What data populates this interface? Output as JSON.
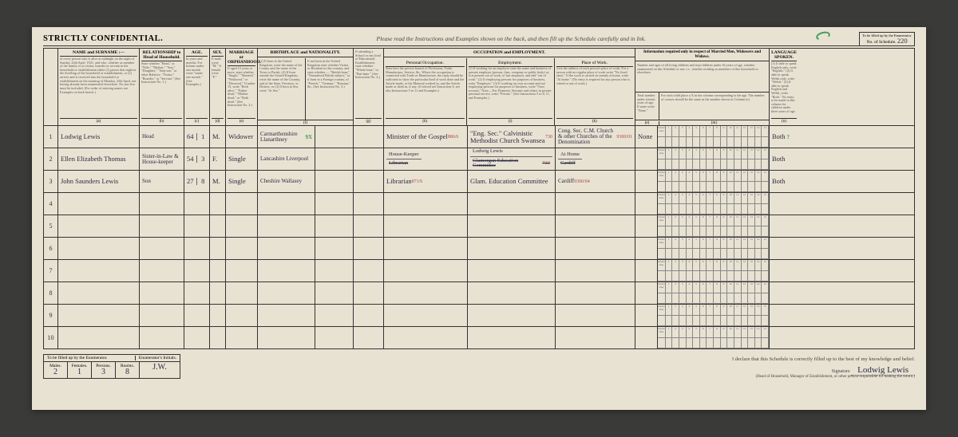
{
  "header": {
    "confidential": "STRICTLY CONFIDENTIAL.",
    "instructions": "Please read the Instructions and Examples shown on the back, and then fill up the Schedule carefully and in Ink.",
    "schedule_label": "To be filled up by the Enumerator.",
    "schedule_no_label": "No. of Schedule.",
    "schedule_no": "220"
  },
  "columns": {
    "name": {
      "title": "NAME and SURNAME :—",
      "text": "of every person who is alive at midnight on the night of Sunday, 24th April, 1921, and who, whether as member of the family or as visitor, boarder or servant in the household or establishment either (1) passes that night in the dwelling of the household or establishment, or (2) arrives and is received into the household or establishment on the morning of Monday, 25th April, not having already been enumerated elsewhere. No one else must be included. (For order of entering names see Examples on back hereof.)",
      "footer": "(a)"
    },
    "relationship": {
      "title": "RELATIONSHIP to Head of Household.",
      "text": "State whether \"Head,\" or \"Wife,\" \"Mother,\" \"Son,\" \"Daughter,\" \"Step-son,\" or other Relative, \"Visitor,\" \"Boarder,\" or \"Servant.\" (See Instruction No. 1.)",
      "footer": "(b)"
    },
    "age": {
      "title": "AGE.",
      "text": "In years and months. For Infants under one month write \"under one month.\" (See Examples.)",
      "footer_y": "Years.",
      "footer_m": "Months.",
      "footer": "(c)"
    },
    "sex": {
      "title": "SEX.",
      "text": "If male write \"M.\" If female write \"F.\"",
      "footer": "(d)"
    },
    "marriage": {
      "title": "MARRIAGE or ORPHANHOOD.",
      "text": "If aged 15 years or more, state whether \"Single,\" \"Married,\" \"Widowed,\" or \"Divorced.\" If under 15, write \"Both alive,\" \"Father dead,\" \"Mother dead,\" or \"Both dead.\" (See Instruction No. 2.)",
      "footer": "(e)"
    },
    "birthplace": {
      "title": "BIRTHPLACE and NATIONALITY.",
      "sub1": "(1) If born in the United Kingdom, write the name of the County and the name of the Town or Parish. (2) If born outside the United Kingdom, write the name of the Country, and of the State, Province, or District; or (3) If born at Sea, write \"At Sea.\"",
      "sub2": "If not born in the United Kingdom state whether Visitor or Resident in this country, and state whether — \"British born,\" \"Naturalised British subject,\" or if born in a Foreign country, of \"French,\" \"German,\" \"Russian,\" &c. (See Instruction No. 3.)",
      "footer": "(f)"
    },
    "school": {
      "title": "",
      "text": "If attending a School or any kind of Educational Establishment, state whether \"Whole-time,\" or \"Part-time.\" (See Instruction No. 4.)",
      "footer": "(g)"
    },
    "occupation": {
      "title": "OCCUPATION and EMPLOYMENT.",
      "personal": "Personal Occupation.",
      "personal_text": "State here the precise branch of Profession, Trade, Manufacture, Service, &c. Where the occupation is connected with Trade or Manufacture, the reply should be sufficient to show the particular kind of work done and the Article made, or the Material worked in, and the Article made or dealt in, if any. (If retired see Instruction 6; see also Instructions 5 to 11 and Examples.)",
      "employment": "Employment.",
      "employment_text": "(1) If working for an employer state the name and business of present employer (person, firm, company or public body) or, if at present out of work, of last employer, and add \"out of work.\" (2) If employing persons for purposes of business, write \"Employer.\" (3) If working on own account and not employing persons for purposes of business, write \"Own account.\" Note.—For Domestic Servants and others in private personal service, write \"Private.\" (See Instructions 5 to 8, 11, and Examples.)",
      "place": "Place of Work.",
      "place_text": "Give the address of each person's place of work. For a person with no regular place of work write \"No fixed place.\" If the work is carried on mainly at home, write \"At home.\" (No entry is required for any person who is retired or out of work.)",
      "footer_h": "(h)",
      "footer_i": "(i)",
      "footer_k": "(k)"
    },
    "married_info": {
      "title": "Information required only in respect of Married Men, Widowers and Widows.",
      "sub": "Number and ages of all living children and step-children under 16 years of age, whether enumerated on this Schedule or not, i.e., whether residing as members of this household or elsewhere.",
      "total": "Total number under sixteen years of age. If none write \"None.\"",
      "children": "For each child place a X in the column corresponding to the age. The number of crosses should be the same as the number shown in Column (e).",
      "footer_e": "(e)",
      "footer_m": "(m)"
    },
    "language": {
      "title": "LANGUAGE SPOKEN.",
      "text": "(1) If able to speak English only, write \"English.\" (2) If able to speak Welsh only, write \"Welsh.\" (3) If able to speak English and Welsh, write \"Both.\" No entry to be made in this column for children under three years of age.",
      "footer": "(n)"
    }
  },
  "rows": [
    {
      "num": "1",
      "name": "Lodwig Lewis",
      "rel": "Head",
      "age_y": "64",
      "age_m": "1",
      "sex": "M.",
      "mar": "Widower",
      "birth": "Carmarthenshire Llanarthney",
      "birth_mark": "9X",
      "occ": "Minister of the Gospel",
      "occ_code": "886/6",
      "emp": "\"Eng. Sec.\" Calvinistic Methodist Church Swansea",
      "emp_code": "730",
      "work": "Cong. Sec. C.M. Church & other Churches of the Denomination",
      "work_code": "9300/01",
      "none": "None",
      "lang": "Both"
    },
    {
      "num": "2",
      "name": "Ellen Elizabeth Thomas",
      "rel": "Sister-in-Law & House-keeper",
      "age_y": "54",
      "age_m": "3",
      "sex": "F.",
      "mar": "Single",
      "birth": "Lancashire Liverpool",
      "occ1": "House-Keeper",
      "occ2": "Librarian",
      "emp1": "Lodwig Lewis",
      "emp2": "Glamorgan Education Committee",
      "emp_code": "722",
      "work1": "At Home",
      "work2": "Cardiff",
      "lang": "Both"
    },
    {
      "num": "3",
      "name": "John Saunders Lewis",
      "rel": "Son",
      "age_y": "27",
      "age_m": "8",
      "sex": "M.",
      "mar": "Single",
      "birth": "Cheshire Wallasey",
      "occ": "Librarian",
      "occ_code": "871/6",
      "emp": "Glam. Education Committee",
      "work": "Cardiff",
      "work_code": "9300/04",
      "lang": "Both"
    },
    {
      "num": "4"
    },
    {
      "num": "5"
    },
    {
      "num": "6"
    },
    {
      "num": "7"
    },
    {
      "num": "8"
    },
    {
      "num": "9"
    },
    {
      "num": "10"
    }
  ],
  "footer": {
    "enum_label": "To be filled up by the Enumerator.",
    "initials_label": "Enumerator's Initials.",
    "males_label": "Males.",
    "males": "2",
    "females_label": "Females.",
    "females": "1",
    "persons_label": "Persons.",
    "persons": "3",
    "rooms_label": "Rooms.",
    "rooms": "8",
    "initials": "J.W.",
    "declaration": "I declare that this Schedule is correctly filled up to the best of my knowledge and belief.",
    "sig_label": "Signature",
    "signature": "Lodwig Lewis",
    "sig_note": "(Head of Household, Manager of Establishment, or other person responsible for making the return.)"
  },
  "child_ages": [
    "1",
    "2",
    "3",
    "4",
    "5",
    "6",
    "7",
    "8",
    "9",
    "10",
    "11",
    "12",
    "13",
    "14",
    "15"
  ],
  "colors": {
    "paper": "#e8e2d2",
    "ink": "#2a2a45",
    "print": "#333333",
    "green": "#4a9a5a",
    "red": "#b04545",
    "bg": "#3a3a38"
  }
}
